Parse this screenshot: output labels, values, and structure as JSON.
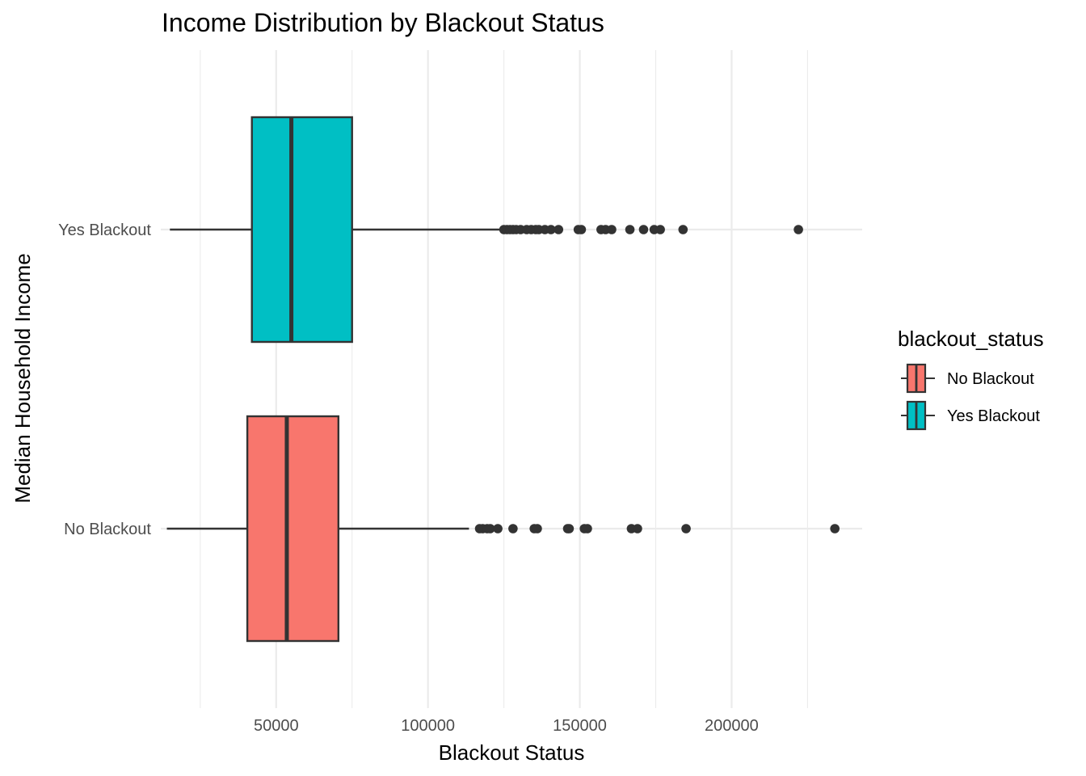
{
  "chart_data": {
    "type": "boxplot",
    "orientation": "horizontal",
    "title": "Income Distribution by Blackout Status",
    "xlabel": "Blackout Status",
    "ylabel": "Median Household Income",
    "xlim": [
      12000,
      243000
    ],
    "x_ticks": [
      50000,
      100000,
      150000,
      200000
    ],
    "x_tick_labels": [
      "50000",
      "100000",
      "150000",
      "200000"
    ],
    "categories": [
      "No Blackout",
      "Yes Blackout"
    ],
    "grid": true,
    "legend": {
      "title": "blackout_status",
      "position": "right",
      "entries": [
        "No Blackout",
        "Yes Blackout"
      ]
    },
    "series": [
      {
        "name": "No Blackout",
        "color": "#F8766D",
        "whisker_low": 14000,
        "q1": 40500,
        "median": 53500,
        "q3": 70500,
        "whisker_high": 113500,
        "outliers": [
          117000,
          118000,
          119500,
          120500,
          123000,
          128000,
          135000,
          136000,
          146000,
          146500,
          151500,
          152500,
          167000,
          169000,
          185000,
          234000
        ]
      },
      {
        "name": "Yes Blackout",
        "color": "#00BFC4",
        "whisker_low": 15000,
        "q1": 42000,
        "median": 55000,
        "q3": 75000,
        "whisker_high": 124000,
        "outliers": [
          125000,
          126000,
          127000,
          128000,
          129000,
          130500,
          132500,
          134000,
          135500,
          136500,
          138500,
          140500,
          143000,
          149500,
          150500,
          157000,
          158500,
          160500,
          166500,
          171000,
          174500,
          176500,
          184000,
          222000
        ]
      }
    ]
  }
}
